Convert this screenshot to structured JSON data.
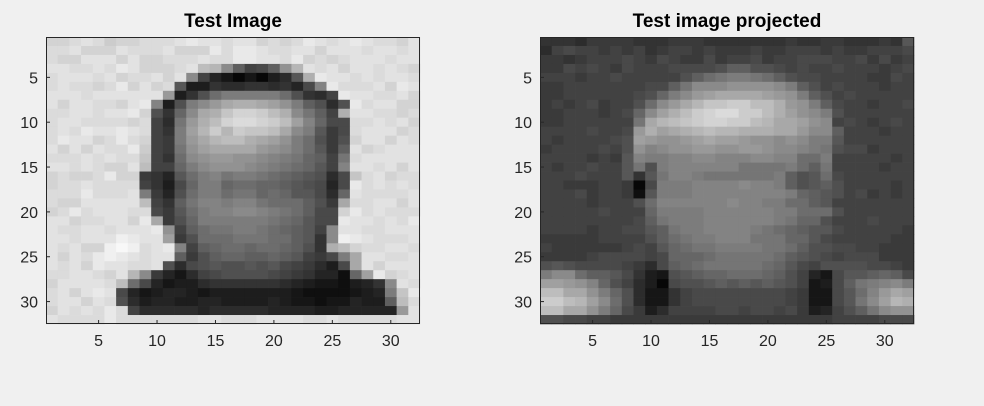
{
  "figure": {
    "background": "#f0f0f0",
    "colormap": "gray"
  },
  "chart_data": [
    {
      "type": "heatmap",
      "title": "Test Image",
      "xlabel": "",
      "ylabel": "",
      "grid": false,
      "xlim": [
        0.5,
        32.5
      ],
      "ylim": [
        0.5,
        32.5
      ],
      "x_ticks": [
        5,
        10,
        15,
        20,
        25,
        30
      ],
      "y_ticks": [
        5,
        10,
        15,
        20,
        25,
        30
      ],
      "x_tick_labels": [
        "5",
        "10",
        "15",
        "20",
        "25",
        "30"
      ],
      "y_tick_labels": [
        "5",
        "10",
        "15",
        "20",
        "25",
        "30"
      ],
      "colormap": "gray",
      "rows": 32,
      "cols": 32,
      "values": [
        "ttuvusttuuuvwvvuvvtutuwvuvwvuutv",
        "uuvtttvuuuvtttwuwwvuuvvtvvvuvvuv",
        "uttvvvtvttuuuvuuwwvvuwtutuvvvuvv",
        "vvuuvuwvtttuvqpjd9adkpvuvtvvuvut",
        "uvvvuvtuuvtvj95313146cowvvuvuvvu",
        "uvuutuwtvtuc4476677675aiwuuuvtwv",
        "vvvuvvvvvvl47bfhhhhhfb769wvvuuvt",
        "vtvvuutvwi4bhjlnoonmkhdb6bwuvvtt",
        "uuvvuvvwtb7ejnorttsqojgd9ovvuutu",
        "uvvuuuutu96gloqtuutsqmieaauuvuvt",
        "uvuwvvwvu97hmpspsrrqnjhc8auvvvtu",
        "uwvvtuwut98hlnpqqonmkhfb8btvvtvu",
        "vtvtvuuws98gkmnnnnlkjhfc8dvtuvvv",
        "uuuvuvuur97fjkllkkjihged9guvvvvv",
        "vvuvuttvq99ehjkkkjihgfec9ivvuvtv",
        "tuttuwtt875cfhighhgfedcb6aruvtuu",
        "tuuvuuuu974aehheffeedcba5awuvuvu",
        "uuuwuuuvh85bfhhfggefecca6evuuuuv",
        "uttvvvvvq97dgiihiigfffdb8nuuvvtv",
        "tuwuvvvuua8cfhiijjihgfdaatwuvuuu",
        "vvtuuvvtwn8behhhhhhgfecaawvvuvuw",
        "vuuvvuvvvwk9dfgghhgfedc9jvvuuvvv",
        "vvuvvvxwvvm8bfffgggffdc7jxwvuuuv",
        "vuvttxyxuvwi9deffeffedb7oqtuuvvu",
        "vtvuwxwvuvvd8bdeeddedc98ahnvvuuv",
        "vuvtwvvuuvb6abcbbcbca9864anvtvvv",
        "uuvvutvpj85369abbbba987552emwtuv",
        "tvvvvuqfa53446777777654332457jvu",
        "uvtvwva5345543444444432222345hrw",
        "uvvtvub6455445544445433233544dqu",
        "tvuvuwu96666656666655554455555lv",
        "vuuuuwuuuuuuuvvuuuvvvvuuvuuuuuvv"
      ]
    },
    {
      "type": "heatmap",
      "title": "Test image projected",
      "xlabel": "",
      "ylabel": "",
      "grid": false,
      "xlim": [
        0.5,
        32.5
      ],
      "ylim": [
        0.5,
        32.5
      ],
      "x_ticks": [
        5,
        10,
        15,
        20,
        25,
        30
      ],
      "y_ticks": [
        5,
        10,
        15,
        20,
        25,
        30
      ],
      "x_tick_labels": [
        "5",
        "10",
        "15",
        "20",
        "25",
        "30"
      ],
      "y_tick_labels": [
        "5",
        "10",
        "15",
        "20",
        "25",
        "30"
      ],
      "colormap": "gray",
      "rows": 32,
      "cols": 32,
      "values": [
        "7776888877788877777778778877787c",
        "69a9989897899898889889998988999a",
        "8878999a98a988a899a899aaa99a8a89",
        "88a9a98a999aaaabddbba9a99a99989a",
        "999899a99999bdfghhgfdbaa999988a9",
        "889999999aadgjjjkkkkjhdb9a999899",
        "88999999abehjlmnnnnmlkhdb9a99999",
        "8989a899bfjlnprrssqqolkhda99899a",
        "8899989aejmoqstuussqomkjhb999999",
        "88999999gnpqrsttssqpnnmkj9a989a9",
        "9999a99alomnopqppooonnljjd999899",
        "989999abmlkklmnmmlkkjkjhhc999999",
        "89999a9bkijkkllkkllkjjihgbaa8999",
        "9999898cihhiijjiiijjiiffh9999989",
        "9899a99cgbhiiiiiigggghfdg9999899",
        "999a999c7cgiihgggggghdbcfa999999",
        "998889981ahhhiiiijiihdbcdb999989",
        "999a89982chhhiiiiiiiihedcb9a8989",
        "99998999bfiiiiiijiihhffdc9999999",
        "99999a999ehhhhiiiiiihhfffb999999",
        "99999999adghhhiiiiiihgeeb999a999",
        "9999899aacdghhiiiihgfedcca999998",
        "888889999bdfghhiiigggeeca9999988",
        "98888889a9cefgghhhhggfdbbaa99888",
        "88889aaaa9aeeefgggggfdcba9aaa888",
        "bcbaaaa986adefgggggfeca9bbbbaa98",
        "hjjfddca743bcdeefffedb953accdeda",
        "mmlkieb9641abbcdcdcdcb934adghijh",
        "qqnnkheb63379aaaaaaaa9833acfilnm",
        "ssqpmjfb63379aaaaaaaa9833acgjmpo",
        "qqnnkhea8469999aa9aa9a8459bdgjkk",
        "bbaa9988888888888888888889999aaa"
      ]
    }
  ]
}
